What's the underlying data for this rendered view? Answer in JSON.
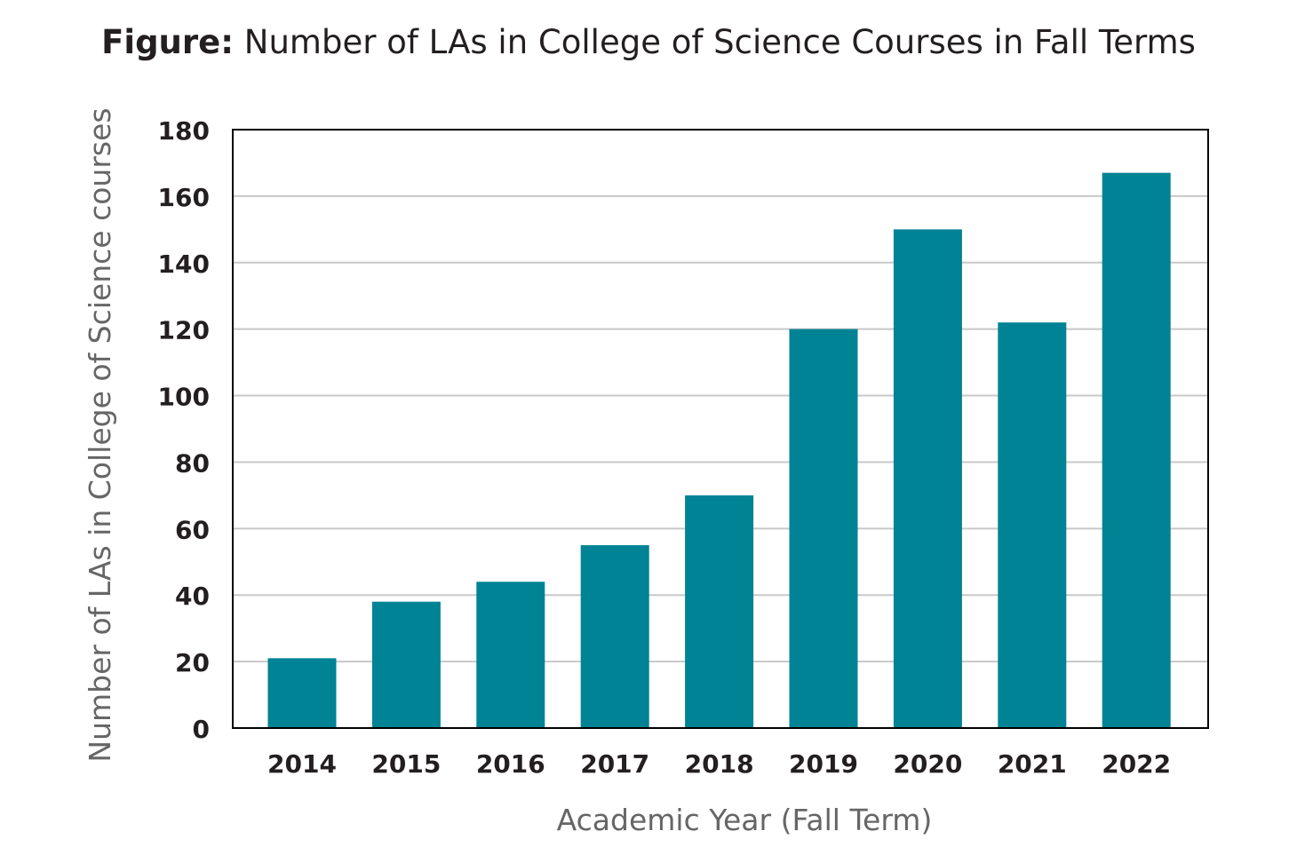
{
  "chart_data": {
    "type": "bar",
    "title_prefix": "Figure:",
    "title": "Number of LAs in College of Science Courses in Fall Terms",
    "xlabel": "Academic Year (Fall Term)",
    "ylabel": "Number of LAs in College of Science courses",
    "categories": [
      "2014",
      "2015",
      "2016",
      "2017",
      "2018",
      "2019",
      "2020",
      "2021",
      "2022"
    ],
    "values": [
      21,
      38,
      44,
      55,
      70,
      120,
      150,
      122,
      167
    ],
    "ylim": [
      0,
      180
    ],
    "yticks": [
      0,
      20,
      40,
      60,
      80,
      100,
      120,
      140,
      160,
      180
    ],
    "grid": true,
    "legend": "none",
    "colors": {
      "bar": "#008394",
      "grid": "#c8c8c8",
      "axis": "#000000",
      "label": "#666666"
    }
  }
}
